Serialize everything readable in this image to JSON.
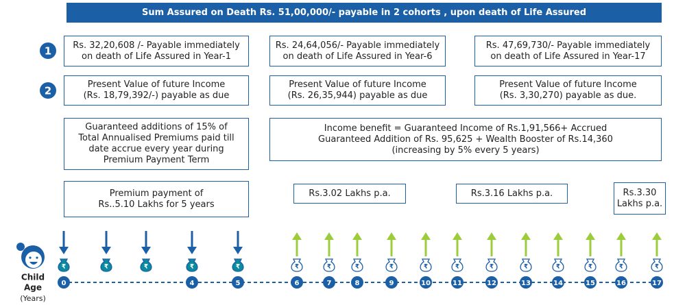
{
  "header": {
    "title": "Sum Assured on Death Rs. 51,00,000/- payable in 2 cohorts , upon death of Life Assured"
  },
  "markers": [
    "1",
    "2"
  ],
  "death_benefit": [
    [
      "Rs. 32,20,608 /- Payable immediately",
      "on death of Life Assured in Year-1"
    ],
    [
      "Rs. 24,64,056/- Payable immediately",
      "on death of Life Assured in Year-6"
    ],
    [
      "Rs. 47,69,730/- Payable immediately",
      "on death of Life Assured in Year-17"
    ]
  ],
  "income_value": [
    [
      "Present Value of future Income",
      "(Rs. 18,79,392/-) payable as due"
    ],
    [
      "Present Value of future Income",
      "(Rs. 26,35,944) payable as due"
    ],
    [
      "Present Value of future Income",
      "(Rs. 3,30,270) payable as due."
    ]
  ],
  "additions": [
    [
      "Guaranteed additions of 15% of",
      "Total Annualised Premiums paid till",
      "date accrue every year during",
      "Premium Payment Term"
    ],
    [
      "Income benefit = Guaranteed Income of Rs.1,91,566+ Accrued",
      "Guaranteed Addition of Rs. 95,625 + Wealth Booster of Rs.14,360",
      "(increasing by 5% every 5 years)"
    ]
  ],
  "payouts": [
    [
      "Premium payment of",
      "Rs..5.10 Lakhs for 5 years"
    ],
    [
      "Rs.3.02 Lakhs p.a."
    ],
    [
      "Rs.3.16 Lakhs p.a."
    ],
    [
      "Rs.3.30",
      "Lakhs p.a."
    ]
  ],
  "timeline": {
    "label_lines": [
      "Child",
      "Age",
      "(Years)"
    ],
    "currency_symbol": "₹",
    "ages": [
      "0",
      null,
      null,
      "4",
      "5",
      "6",
      "7",
      "8",
      "9",
      "10",
      "11",
      "12",
      "13",
      "14",
      "15",
      "16",
      "17"
    ]
  }
}
